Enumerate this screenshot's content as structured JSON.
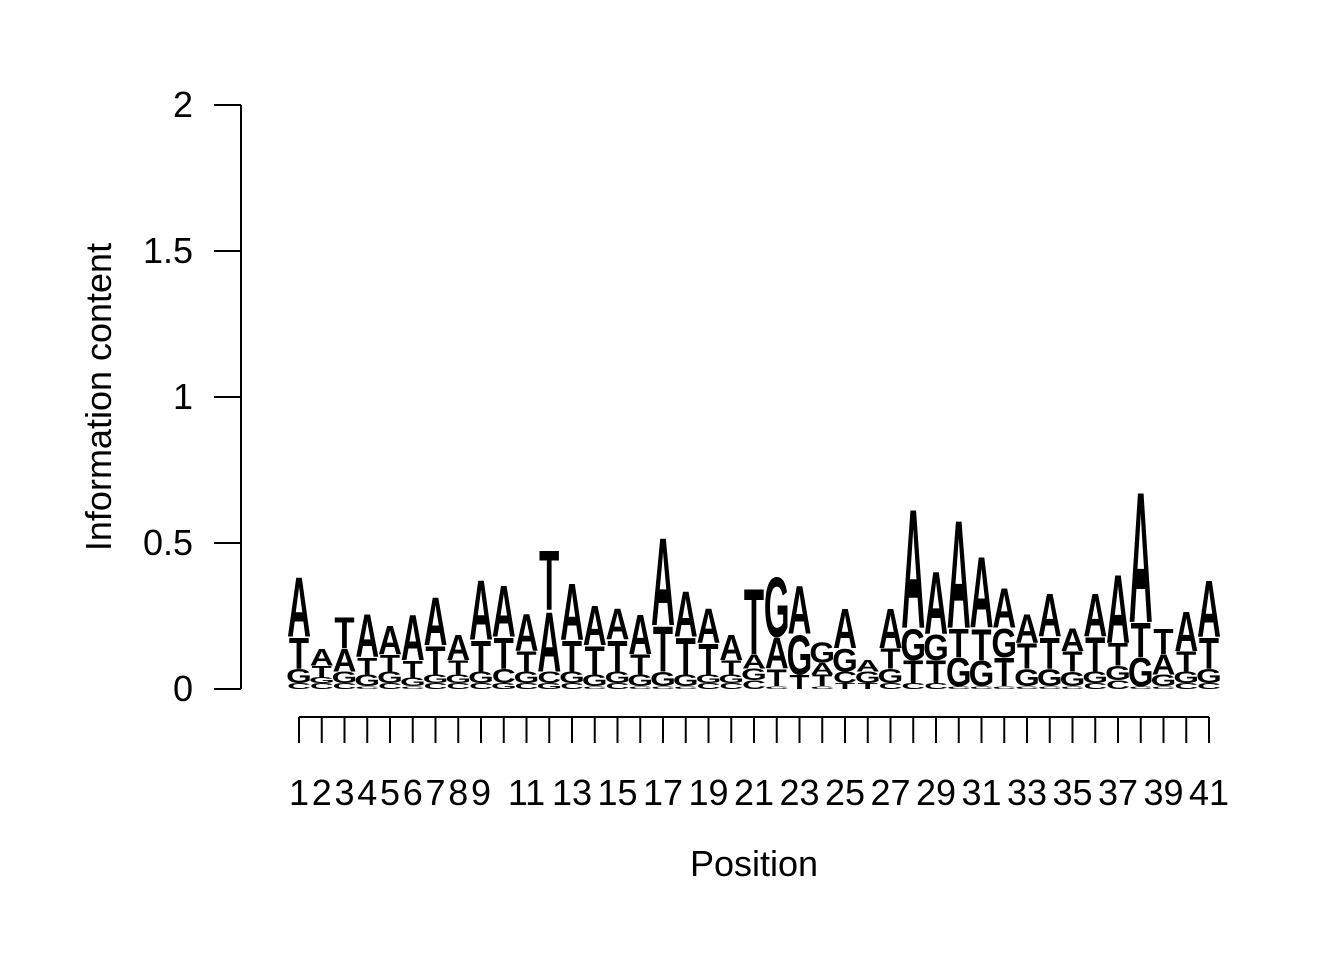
{
  "chart_data": {
    "type": "sequence-logo",
    "xlabel": "Position",
    "ylabel": "Information content",
    "ylim": [
      0,
      2
    ],
    "yticks": [
      "0",
      "0.5",
      "1",
      "1.5",
      "2"
    ],
    "ytick_values": [
      0,
      0.5,
      1,
      1.5,
      2
    ],
    "xtick_labels": [
      "1",
      "2",
      "3",
      "4",
      "5",
      "6",
      "7",
      "8",
      "9",
      "11",
      "13",
      "15",
      "17",
      "19",
      "21",
      "23",
      "25",
      "27",
      "29",
      "31",
      "33",
      "35",
      "37",
      "39",
      "41"
    ],
    "xtick_positions": [
      1,
      2,
      3,
      4,
      5,
      6,
      7,
      8,
      9,
      11,
      13,
      15,
      17,
      19,
      21,
      23,
      25,
      27,
      29,
      31,
      33,
      35,
      37,
      39,
      41
    ],
    "num_positions": 41,
    "colors": {
      "A": "#e41a1c",
      "C": "#377eb8",
      "G": "#f2e03a",
      "T": "#4daf4a"
    },
    "positions": [
      {
        "pos": 1,
        "stack": [
          [
            "C",
            0.02
          ],
          [
            "G",
            0.05
          ],
          [
            "T",
            0.11
          ],
          [
            "A",
            0.21
          ]
        ]
      },
      {
        "pos": 2,
        "stack": [
          [
            "C",
            0.02
          ],
          [
            "G",
            0.02
          ],
          [
            "T",
            0.04
          ],
          [
            "A",
            0.06
          ]
        ]
      },
      {
        "pos": 3,
        "stack": [
          [
            "C",
            0.02
          ],
          [
            "G",
            0.04
          ],
          [
            "A",
            0.08
          ],
          [
            "T",
            0.11
          ]
        ]
      },
      {
        "pos": 4,
        "stack": [
          [
            "C",
            0.01
          ],
          [
            "G",
            0.04
          ],
          [
            "T",
            0.06
          ],
          [
            "A",
            0.15
          ]
        ]
      },
      {
        "pos": 5,
        "stack": [
          [
            "C",
            0.02
          ],
          [
            "G",
            0.04
          ],
          [
            "T",
            0.06
          ],
          [
            "A",
            0.1
          ]
        ]
      },
      {
        "pos": 6,
        "stack": [
          [
            "C",
            0.01
          ],
          [
            "G",
            0.03
          ],
          [
            "T",
            0.06
          ],
          [
            "A",
            0.16
          ]
        ]
      },
      {
        "pos": 7,
        "stack": [
          [
            "C",
            0.02
          ],
          [
            "G",
            0.03
          ],
          [
            "T",
            0.1
          ],
          [
            "A",
            0.17
          ]
        ]
      },
      {
        "pos": 8,
        "stack": [
          [
            "C",
            0.02
          ],
          [
            "G",
            0.03
          ],
          [
            "T",
            0.05
          ],
          [
            "A",
            0.09
          ]
        ]
      },
      {
        "pos": 9,
        "stack": [
          [
            "C",
            0.02
          ],
          [
            "G",
            0.04
          ],
          [
            "T",
            0.11
          ],
          [
            "A",
            0.21
          ]
        ]
      },
      {
        "pos": 10,
        "stack": [
          [
            "G",
            0.02
          ],
          [
            "C",
            0.05
          ],
          [
            "T",
            0.11
          ],
          [
            "A",
            0.18
          ]
        ]
      },
      {
        "pos": 11,
        "stack": [
          [
            "C",
            0.02
          ],
          [
            "G",
            0.04
          ],
          [
            "T",
            0.07
          ],
          [
            "A",
            0.13
          ]
        ]
      },
      {
        "pos": 12,
        "stack": [
          [
            "G",
            0.02
          ],
          [
            "C",
            0.04
          ],
          [
            "A",
            0.21
          ],
          [
            "T",
            0.21
          ]
        ]
      },
      {
        "pos": 13,
        "stack": [
          [
            "C",
            0.02
          ],
          [
            "G",
            0.04
          ],
          [
            "T",
            0.11
          ],
          [
            "A",
            0.2
          ]
        ]
      },
      {
        "pos": 14,
        "stack": [
          [
            "C",
            0.01
          ],
          [
            "G",
            0.04
          ],
          [
            "T",
            0.1
          ],
          [
            "A",
            0.14
          ]
        ]
      },
      {
        "pos": 15,
        "stack": [
          [
            "C",
            0.02
          ],
          [
            "G",
            0.04
          ],
          [
            "T",
            0.11
          ],
          [
            "A",
            0.11
          ]
        ]
      },
      {
        "pos": 16,
        "stack": [
          [
            "C",
            0.01
          ],
          [
            "G",
            0.04
          ],
          [
            "T",
            0.07
          ],
          [
            "A",
            0.14
          ]
        ]
      },
      {
        "pos": 17,
        "stack": [
          [
            "C",
            0.01
          ],
          [
            "G",
            0.05
          ],
          [
            "T",
            0.16
          ],
          [
            "A",
            0.31
          ]
        ]
      },
      {
        "pos": 18,
        "stack": [
          [
            "C",
            0.01
          ],
          [
            "G",
            0.04
          ],
          [
            "T",
            0.13
          ],
          [
            "A",
            0.16
          ]
        ]
      },
      {
        "pos": 19,
        "stack": [
          [
            "C",
            0.02
          ],
          [
            "G",
            0.03
          ],
          [
            "T",
            0.11
          ],
          [
            "A",
            0.12
          ]
        ]
      },
      {
        "pos": 20,
        "stack": [
          [
            "C",
            0.02
          ],
          [
            "G",
            0.03
          ],
          [
            "T",
            0.05
          ],
          [
            "A",
            0.09
          ]
        ]
      },
      {
        "pos": 21,
        "stack": [
          [
            "C",
            0.03
          ],
          [
            "G",
            0.04
          ],
          [
            "A",
            0.05
          ],
          [
            "T",
            0.23
          ]
        ]
      },
      {
        "pos": 22,
        "stack": [
          [
            "C",
            0.01
          ],
          [
            "T",
            0.06
          ],
          [
            "A",
            0.11
          ],
          [
            "G",
            0.21
          ]
        ]
      },
      {
        "pos": 23,
        "stack": [
          [
            "T",
            0.05
          ],
          [
            "G",
            0.14
          ],
          [
            "A",
            0.17
          ]
        ]
      },
      {
        "pos": 24,
        "stack": [
          [
            "C",
            0.01
          ],
          [
            "T",
            0.04
          ],
          [
            "A",
            0.04
          ],
          [
            "G",
            0.07
          ]
        ]
      },
      {
        "pos": 25,
        "stack": [
          [
            "T",
            0.02
          ],
          [
            "C",
            0.04
          ],
          [
            "G",
            0.08
          ],
          [
            "A",
            0.14
          ]
        ]
      },
      {
        "pos": 26,
        "stack": [
          [
            "T",
            0.02
          ],
          [
            "G",
            0.04
          ],
          [
            "A",
            0.04
          ]
        ]
      },
      {
        "pos": 27,
        "stack": [
          [
            "C",
            0.02
          ],
          [
            "G",
            0.05
          ],
          [
            "T",
            0.07
          ],
          [
            "A",
            0.14
          ]
        ]
      },
      {
        "pos": 28,
        "stack": [
          [
            "C",
            0.02
          ],
          [
            "T",
            0.08
          ],
          [
            "G",
            0.11
          ],
          [
            "A",
            0.42
          ]
        ]
      },
      {
        "pos": 29,
        "stack": [
          [
            "C",
            0.02
          ],
          [
            "T",
            0.08
          ],
          [
            "G",
            0.09
          ],
          [
            "A",
            0.22
          ]
        ]
      },
      {
        "pos": 30,
        "stack": [
          [
            "C",
            0.01
          ],
          [
            "G",
            0.1
          ],
          [
            "T",
            0.1
          ],
          [
            "A",
            0.38
          ]
        ]
      },
      {
        "pos": 31,
        "stack": [
          [
            "C",
            0.01
          ],
          [
            "G",
            0.09
          ],
          [
            "T",
            0.11
          ],
          [
            "A",
            0.25
          ]
        ]
      },
      {
        "pos": 32,
        "stack": [
          [
            "C",
            0.01
          ],
          [
            "T",
            0.1
          ],
          [
            "G",
            0.1
          ],
          [
            "A",
            0.14
          ]
        ]
      },
      {
        "pos": 33,
        "stack": [
          [
            "C",
            0.01
          ],
          [
            "G",
            0.06
          ],
          [
            "T",
            0.09
          ],
          [
            "A",
            0.1
          ]
        ]
      },
      {
        "pos": 34,
        "stack": [
          [
            "C",
            0.01
          ],
          [
            "G",
            0.06
          ],
          [
            "T",
            0.11
          ],
          [
            "A",
            0.15
          ]
        ]
      },
      {
        "pos": 35,
        "stack": [
          [
            "C",
            0.01
          ],
          [
            "G",
            0.05
          ],
          [
            "T",
            0.07
          ],
          [
            "A",
            0.08
          ]
        ]
      },
      {
        "pos": 36,
        "stack": [
          [
            "C",
            0.02
          ],
          [
            "G",
            0.04
          ],
          [
            "T",
            0.12
          ],
          [
            "A",
            0.15
          ]
        ]
      },
      {
        "pos": 37,
        "stack": [
          [
            "C",
            0.03
          ],
          [
            "G",
            0.05
          ],
          [
            "T",
            0.08
          ],
          [
            "A",
            0.24
          ]
        ]
      },
      {
        "pos": 38,
        "stack": [
          [
            "C",
            0.01
          ],
          [
            "G",
            0.1
          ],
          [
            "T",
            0.12
          ],
          [
            "A",
            0.46
          ]
        ]
      },
      {
        "pos": 39,
        "stack": [
          [
            "C",
            0.01
          ],
          [
            "G",
            0.04
          ],
          [
            "A",
            0.07
          ],
          [
            "T",
            0.09
          ]
        ]
      },
      {
        "pos": 40,
        "stack": [
          [
            "C",
            0.02
          ],
          [
            "G",
            0.04
          ],
          [
            "T",
            0.07
          ],
          [
            "A",
            0.14
          ]
        ]
      },
      {
        "pos": 41,
        "stack": [
          [
            "C",
            0.02
          ],
          [
            "G",
            0.05
          ],
          [
            "T",
            0.11
          ],
          [
            "A",
            0.2
          ]
        ]
      }
    ]
  }
}
